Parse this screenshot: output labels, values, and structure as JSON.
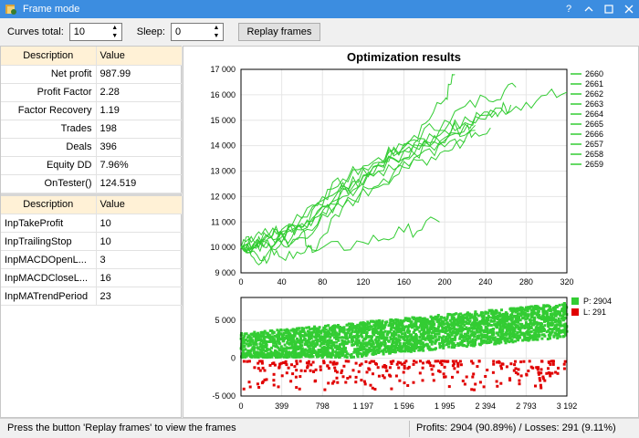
{
  "window": {
    "title": "Frame mode",
    "help": "?"
  },
  "toolbar": {
    "curves_label": "Curves total:",
    "curves_value": "10",
    "sleep_label": "Sleep:",
    "sleep_value": "0",
    "replay_label": "Replay frames"
  },
  "results_table": {
    "headers": [
      "Description",
      "Value"
    ],
    "rows": [
      {
        "k": "Net profit",
        "v": "987.99"
      },
      {
        "k": "Profit Factor",
        "v": "2.28"
      },
      {
        "k": "Factor Recovery",
        "v": "1.19"
      },
      {
        "k": "Trades",
        "v": "198"
      },
      {
        "k": "Deals",
        "v": "396"
      },
      {
        "k": "Equity DD",
        "v": "7.96%"
      },
      {
        "k": "OnTester()",
        "v": "124.519"
      }
    ]
  },
  "params_table": {
    "headers": [
      "Description",
      "Value"
    ],
    "rows": [
      {
        "k": "InpTakeProfit",
        "v": "10"
      },
      {
        "k": "InpTrailingStop",
        "v": "10"
      },
      {
        "k": "InpMACDOpenL...",
        "v": "3"
      },
      {
        "k": "InpMACDCloseL...",
        "v": "16"
      },
      {
        "k": "InpMATrendPeriod",
        "v": "23"
      }
    ]
  },
  "status": {
    "left": "Press the button 'Replay frames' to view the frames",
    "right": "Profits: 2904 (90.89%) / Losses: 291 (9.11%)"
  },
  "colors": {
    "curve": "#33cc33",
    "profit": "#33cc33",
    "loss": "#e00000",
    "titlebar": "#3c8de0",
    "header": "#fff1d6"
  },
  "chart_data": [
    {
      "type": "line",
      "title": "Optimization results",
      "xlim": [
        0,
        320
      ],
      "ylim": [
        9000,
        17000
      ],
      "x_ticks": [
        "0",
        "40",
        "80",
        "120",
        "160",
        "200",
        "240",
        "280",
        "320"
      ],
      "y_ticks": [
        "9 000",
        "10 000",
        "11 000",
        "12 000",
        "13 000",
        "14 000",
        "15 000",
        "16 000",
        "17 000"
      ],
      "grid": true,
      "legend_position": "right",
      "series": [
        {
          "name": "2660",
          "points": [
            [
              0,
              10000
            ],
            [
              20,
              10300
            ],
            [
              40,
              10700
            ],
            [
              80,
              12000
            ],
            [
              120,
              13200
            ],
            [
              160,
              13800
            ],
            [
              200,
              14600
            ],
            [
              240,
              15200
            ],
            [
              280,
              15700
            ],
            [
              320,
              16100
            ]
          ]
        },
        {
          "name": "2661",
          "points": [
            [
              0,
              10000
            ],
            [
              20,
              9400
            ],
            [
              40,
              10200
            ],
            [
              80,
              11600
            ],
            [
              120,
              12800
            ],
            [
              160,
              14000
            ],
            [
              200,
              15000
            ],
            [
              240,
              15900
            ],
            [
              270,
              16300
            ]
          ]
        },
        {
          "name": "2662",
          "points": [
            [
              0,
              10000
            ],
            [
              25,
              10500
            ],
            [
              50,
              10900
            ],
            [
              90,
              12300
            ],
            [
              130,
              13300
            ],
            [
              170,
              14400
            ],
            [
              200,
              15800
            ],
            [
              210,
              16800
            ]
          ]
        },
        {
          "name": "2663",
          "points": [
            [
              0,
              10000
            ],
            [
              20,
              10500
            ],
            [
              50,
              10400
            ],
            [
              90,
              11800
            ],
            [
              130,
              12800
            ],
            [
              170,
              13700
            ],
            [
              210,
              14500
            ],
            [
              250,
              15300
            ],
            [
              265,
              15600
            ]
          ]
        },
        {
          "name": "2664",
          "points": [
            [
              0,
              10000
            ],
            [
              25,
              9700
            ],
            [
              60,
              10600
            ],
            [
              100,
              12000
            ],
            [
              140,
              13400
            ],
            [
              180,
              14200
            ],
            [
              220,
              14900
            ],
            [
              250,
              15300
            ]
          ]
        },
        {
          "name": "2665",
          "points": [
            [
              0,
              10000
            ],
            [
              20,
              10300
            ],
            [
              45,
              10000
            ],
            [
              85,
              11200
            ],
            [
              125,
              12300
            ],
            [
              165,
              13200
            ],
            [
              200,
              13800
            ],
            [
              230,
              14600
            ]
          ]
        },
        {
          "name": "2666",
          "points": [
            [
              0,
              10000
            ],
            [
              25,
              10200
            ],
            [
              55,
              10700
            ],
            [
              95,
              12200
            ],
            [
              135,
              13000
            ],
            [
              175,
              14100
            ],
            [
              215,
              14500
            ],
            [
              245,
              14700
            ]
          ]
        },
        {
          "name": "2657",
          "points": [
            [
              0,
              10000
            ],
            [
              20,
              10100
            ],
            [
              40,
              9600
            ],
            [
              70,
              9900
            ],
            [
              100,
              11600
            ],
            [
              140,
              12700
            ],
            [
              180,
              13800
            ],
            [
              220,
              14200
            ]
          ]
        },
        {
          "name": "2658",
          "points": [
            [
              0,
              10000
            ],
            [
              20,
              10200
            ],
            [
              50,
              10600
            ],
            [
              80,
              11400
            ],
            [
              110,
              12600
            ],
            [
              150,
              13500
            ],
            [
              190,
              14400
            ],
            [
              230,
              14800
            ]
          ]
        },
        {
          "name": "2659",
          "points": [
            [
              0,
              10000
            ],
            [
              30,
              10400
            ],
            [
              60,
              10700
            ],
            [
              70,
              9800
            ],
            [
              120,
              10200
            ],
            [
              160,
              10600
            ],
            [
              195,
              11000
            ]
          ]
        }
      ]
    },
    {
      "type": "scatter",
      "xlim": [
        0,
        3192
      ],
      "ylim": [
        -5000,
        8000
      ],
      "x_ticks": [
        "0",
        "399",
        "798",
        "1 197",
        "1 596",
        "1 995",
        "2 394",
        "2 793",
        "3 192"
      ],
      "y_ticks": [
        "-5 000",
        "0",
        "5 000"
      ],
      "grid": true,
      "legend_position": "top-right",
      "series": [
        {
          "name": "P: 2904",
          "count": 2904,
          "trend": {
            "x": [
              0,
              3192
            ],
            "y": [
              1000,
              5000
            ]
          }
        },
        {
          "name": "L: 291",
          "count": 291,
          "trend": {
            "x": [
              0,
              3192
            ],
            "y": [
              -700,
              -700
            ]
          }
        }
      ]
    }
  ]
}
